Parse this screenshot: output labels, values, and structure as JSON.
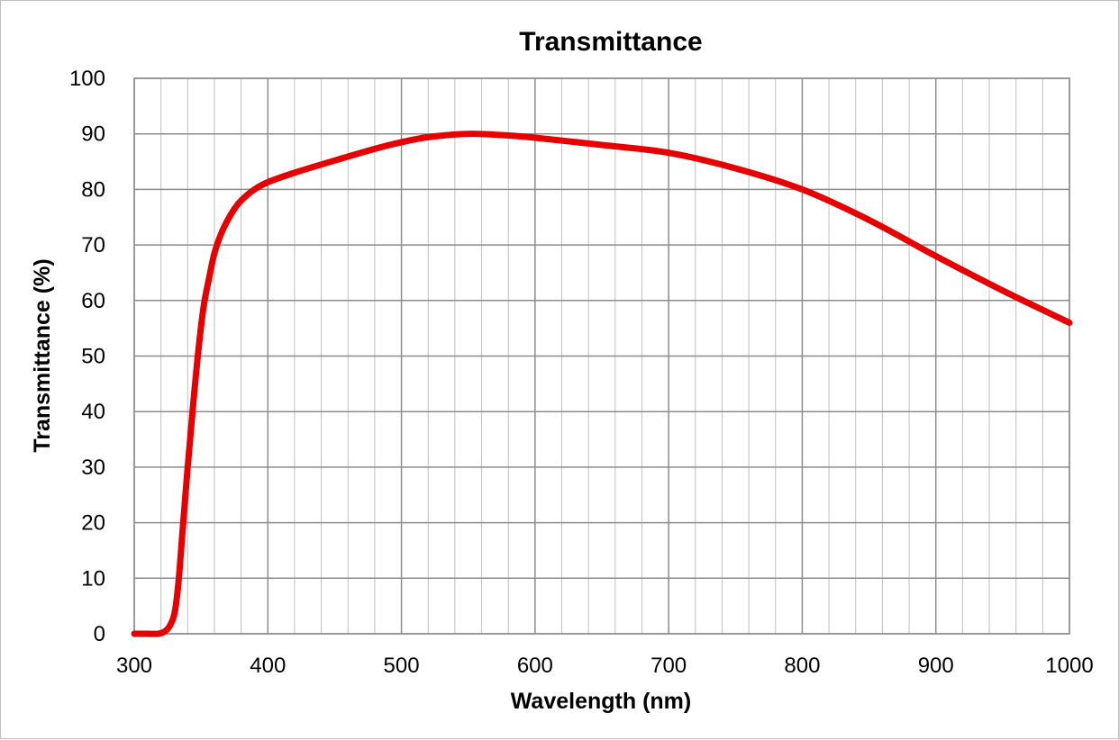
{
  "chart_data": {
    "type": "line",
    "title": "Transmittance",
    "xlabel": "Wavelength (nm)",
    "ylabel": "Transmittance (%)",
    "xlim": [
      300,
      1000
    ],
    "ylim": [
      0,
      100
    ],
    "x_ticks": [
      "300",
      "400",
      "500",
      "600",
      "700",
      "800",
      "900",
      "1000"
    ],
    "y_ticks": [
      "0",
      "10",
      "20",
      "30",
      "40",
      "50",
      "60",
      "70",
      "80",
      "90",
      "100"
    ],
    "x_minor_step": 20,
    "grid": true,
    "legend": "none",
    "series": [
      {
        "color": "#e60000",
        "x": [
          300,
          310,
          318,
          322,
          326,
          330,
          333,
          336,
          340,
          344,
          348,
          352,
          356,
          360,
          365,
          370,
          375,
          380,
          390,
          400,
          420,
          450,
          480,
          500,
          520,
          550,
          580,
          600,
          650,
          700,
          750,
          800,
          850,
          900,
          950,
          1000
        ],
        "y": [
          0,
          0,
          0,
          0.3,
          1.2,
          3.5,
          9,
          18,
          30,
          41,
          51,
          59,
          64,
          68.5,
          72,
          74.5,
          76.5,
          78,
          80,
          81.3,
          83,
          85.2,
          87.3,
          88.5,
          89.4,
          90,
          89.7,
          89.3,
          88,
          86.6,
          83.8,
          80,
          74.5,
          68,
          61.8,
          56
        ]
      }
    ]
  }
}
